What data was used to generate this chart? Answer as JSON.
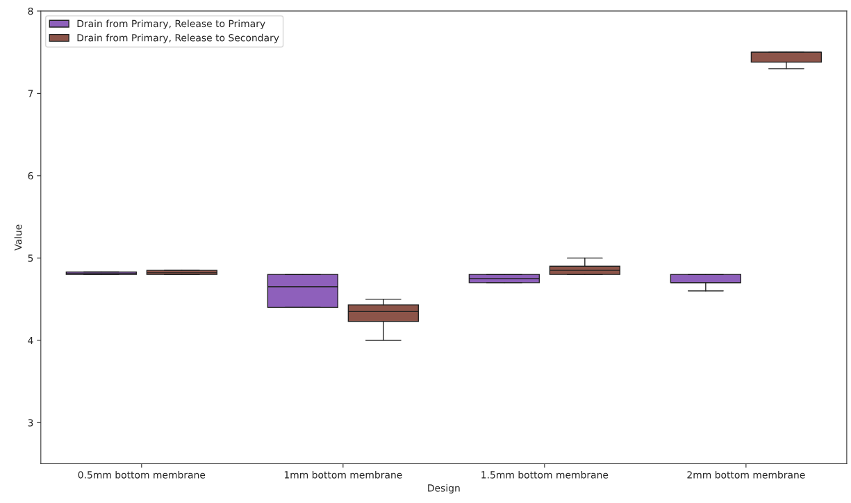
{
  "chart_data": {
    "type": "box",
    "xlabel": "Design",
    "ylabel": "Value",
    "categories": [
      "0.5mm bottom membrane",
      "1mm bottom membrane",
      "1.5mm bottom membrane",
      "2mm bottom membrane"
    ],
    "ylim": [
      2.5,
      8
    ],
    "yticks": [
      3,
      4,
      5,
      6,
      7,
      8
    ],
    "grid": false,
    "legend": "top left",
    "series": [
      {
        "name": "Drain from Primary, Release to Primary",
        "color": "#8e60bb",
        "boxes": [
          {
            "low": 4.8,
            "q1": 4.8,
            "median": 4.81,
            "q3": 4.83,
            "high": 4.83
          },
          {
            "low": 4.4,
            "q1": 4.4,
            "median": 4.65,
            "q3": 4.8,
            "high": 4.8
          },
          {
            "low": 4.7,
            "q1": 4.7,
            "median": 4.75,
            "q3": 4.8,
            "high": 4.8
          },
          {
            "low": 4.6,
            "q1": 4.7,
            "median": 4.7,
            "q3": 4.8,
            "high": 4.8
          }
        ]
      },
      {
        "name": "Drain from Primary, Release to Secondary",
        "color": "#8c5449",
        "boxes": [
          {
            "low": 4.8,
            "q1": 4.8,
            "median": 4.82,
            "q3": 4.85,
            "high": 4.85
          },
          {
            "low": 4.0,
            "q1": 4.23,
            "median": 4.35,
            "q3": 4.43,
            "high": 4.5
          },
          {
            "low": 4.8,
            "q1": 4.8,
            "median": 4.85,
            "q3": 4.9,
            "high": 5.0
          },
          {
            "low": 7.3,
            "q1": 7.38,
            "median": 7.5,
            "q3": 7.5,
            "high": 7.5
          }
        ]
      }
    ]
  }
}
